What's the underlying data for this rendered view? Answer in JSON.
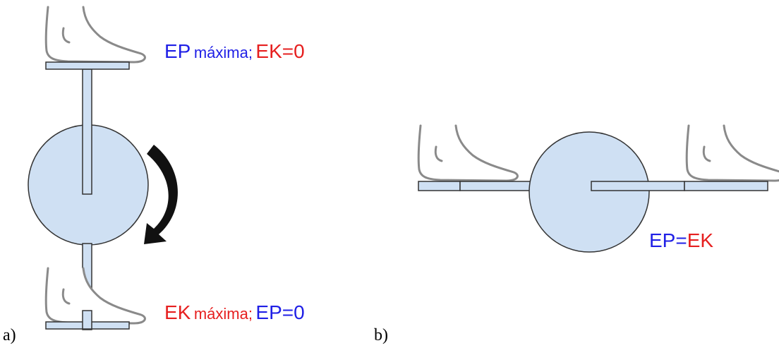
{
  "panels": [
    {
      "label": "a)",
      "top_text": [
        {
          "text": "EP",
          "color": "#1f1fe6"
        },
        {
          "text": "máxima;",
          "color": "#1f1fe6"
        },
        {
          "text": "EK=0",
          "color": "#e61f1f"
        }
      ],
      "bottom_text": [
        {
          "text": "EK",
          "color": "#e61f1f"
        },
        {
          "text": "máxima;",
          "color": "#e61f1f"
        },
        {
          "text": "EP=0",
          "color": "#1f1fe6"
        }
      ]
    },
    {
      "label": "b)",
      "text": [
        {
          "text": "EP=",
          "color": "#1f1fe6"
        },
        {
          "text": "EK",
          "color": "#e61f1f"
        }
      ]
    }
  ]
}
